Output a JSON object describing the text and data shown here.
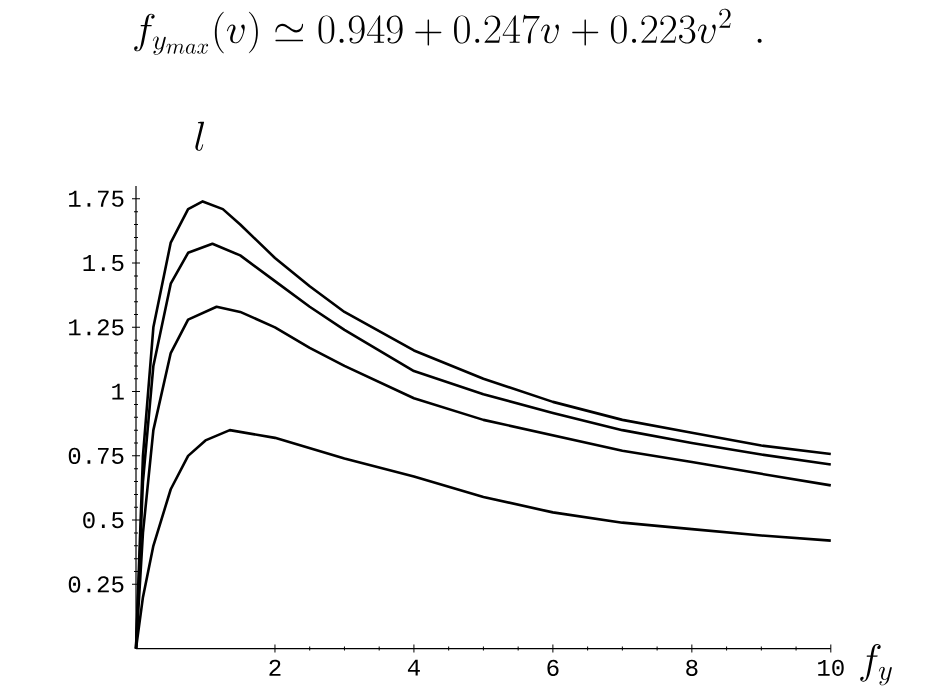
{
  "chart_data": {
    "type": "line",
    "title": "f_{y_{max}}(v) \\simeq 0.949+0.247v+0.223v^2\\ \\ .",
    "xlabel": "f_y",
    "ylabel": "l",
    "xlim": [
      0,
      10
    ],
    "ylim": [
      0,
      1.8
    ],
    "xticks": [
      2,
      4,
      6,
      8,
      10
    ],
    "yticks": [
      0.25,
      0.5,
      0.75,
      1,
      1.25,
      1.5,
      1.75
    ],
    "series": [
      {
        "color": "#000000",
        "x": [
          0,
          0.1,
          0.25,
          0.5,
          0.75,
          0.96,
          1.25,
          1.5,
          2,
          2.5,
          3,
          4,
          5,
          6,
          7,
          8,
          9,
          10
        ],
        "values": [
          0,
          0.75,
          1.25,
          1.58,
          1.71,
          1.74,
          1.71,
          1.65,
          1.52,
          1.41,
          1.31,
          1.16,
          1.05,
          0.96,
          0.89,
          0.84,
          0.79,
          0.757
        ]
      },
      {
        "color": "#000000",
        "x": [
          0,
          0.1,
          0.25,
          0.5,
          0.75,
          1.1,
          1.5,
          2,
          2.5,
          3,
          4,
          5,
          6,
          7,
          8,
          9,
          10
        ],
        "values": [
          0,
          0.65,
          1.1,
          1.42,
          1.54,
          1.575,
          1.53,
          1.43,
          1.33,
          1.24,
          1.08,
          0.99,
          0.917,
          0.85,
          0.8,
          0.755,
          0.716
        ]
      },
      {
        "color": "#000000",
        "x": [
          0,
          0.1,
          0.25,
          0.5,
          0.75,
          1.16,
          1.5,
          2,
          2.5,
          3,
          4,
          5,
          6,
          7,
          8,
          9,
          10
        ],
        "values": [
          0,
          0.45,
          0.85,
          1.15,
          1.28,
          1.33,
          1.31,
          1.25,
          1.17,
          1.1,
          0.974,
          0.89,
          0.83,
          0.77,
          0.726,
          0.68,
          0.635
        ]
      },
      {
        "color": "#000000",
        "x": [
          0,
          0.1,
          0.25,
          0.5,
          0.75,
          1,
          1.35,
          2,
          2.5,
          3,
          4,
          5,
          6,
          7,
          8,
          9,
          10
        ],
        "values": [
          0,
          0.2,
          0.4,
          0.62,
          0.75,
          0.81,
          0.85,
          0.82,
          0.78,
          0.74,
          0.67,
          0.59,
          0.53,
          0.49,
          0.465,
          0.44,
          0.42
        ]
      }
    ]
  }
}
